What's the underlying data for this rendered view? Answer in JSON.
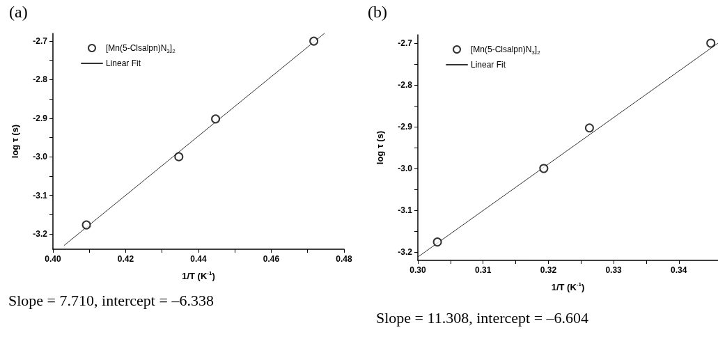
{
  "chart_data": [
    {
      "type": "scatter",
      "title": "(a)",
      "xlabel": "1/T (K$^{-1}$)",
      "ylabel": "log τ (s)",
      "xlim": [
        0.4,
        0.48
      ],
      "xticks": [
        {
          "value": 0.4,
          "label": "0.40"
        },
        {
          "value": 0.41,
          "label": null
        },
        0.42,
        {
          "value": 0.43,
          "label": null
        },
        0.44,
        {
          "value": 0.45,
          "label": null
        },
        0.46,
        {
          "value": 0.47,
          "label": null
        },
        {
          "value": 0.48,
          "label": "0.48"
        }
      ],
      "ylim": [
        -3.24,
        -2.68
      ],
      "yticks": [
        {
          "value": -3.2,
          "label": "-3.2"
        },
        {
          "value": -3.15,
          "label": null
        },
        -3.1,
        {
          "value": -3.05,
          "label": null
        },
        {
          "value": -3,
          "label": "-3.0"
        },
        {
          "value": -2.95,
          "label": null
        },
        -2.9,
        {
          "value": -2.85,
          "label": null
        },
        -2.8,
        {
          "value": -2.75,
          "label": null
        },
        -2.7
      ],
      "grid": false,
      "legend": "top left",
      "marker": "circle",
      "x": [
        0.4092,
        0.4346,
        0.4447,
        0.4717
      ],
      "series": [
        {
          "name": "[Mn(5-Clsalpn)N$_{3}$]$_{2}$",
          "color": "#000000",
          "values": [
            -3.177,
            -3.0,
            -2.902,
            -2.7
          ]
        },
        {
          "name": "Linear Fit",
          "type": "line",
          "color": "#333333",
          "marker": "none",
          "line_style": "solid",
          "x": [
            0.4031,
            0.4746
          ],
          "values": [
            -3.23,
            -2.68
          ]
        }
      ],
      "annotations": [
        "Slope = 7.710, intercept = –6.338"
      ]
    },
    {
      "type": "scatter",
      "title": "(b)",
      "xlabel": "1/T (K$^{-1}$)",
      "ylabel": "log τ (s)",
      "xlim": [
        0.3,
        0.346
      ],
      "xticks": [
        {
          "value": 0.3,
          "label": "0.30"
        },
        {
          "value": 0.305,
          "label": null
        },
        0.31,
        {
          "value": 0.315,
          "label": null
        },
        0.32,
        {
          "value": 0.325,
          "label": null
        },
        0.33,
        {
          "value": 0.335,
          "label": null
        },
        0.34
      ],
      "ylim": [
        -3.22,
        -2.68
      ],
      "yticks": [
        {
          "value": -3.2,
          "label": "-3.2"
        },
        {
          "value": -3.15,
          "label": null
        },
        -3.1,
        {
          "value": -3.05,
          "label": null
        },
        {
          "value": -3,
          "label": "-3.0"
        },
        {
          "value": -2.95,
          "label": null
        },
        -2.9,
        {
          "value": -2.85,
          "label": null
        },
        -2.8,
        {
          "value": -2.75,
          "label": null
        },
        -2.7
      ],
      "grid": false,
      "legend": "top left",
      "marker": "circle",
      "x": [
        0.303,
        0.3193,
        0.3263,
        0.3449
      ],
      "series": [
        {
          "name": "[Mn(5-Clsalpn)N$_{3}$]$_{2}$",
          "color": "#000000",
          "values": [
            -3.176,
            -3.0,
            -2.903,
            -2.7
          ]
        },
        {
          "name": "Linear Fit",
          "type": "line",
          "color": "#333333",
          "marker": "none",
          "line_style": "solid",
          "x": [
            0.3,
            0.346
          ],
          "values": [
            -3.212,
            -2.7
          ]
        }
      ],
      "annotations": [
        "Slope = 11.308, intercept = –6.604"
      ]
    }
  ]
}
